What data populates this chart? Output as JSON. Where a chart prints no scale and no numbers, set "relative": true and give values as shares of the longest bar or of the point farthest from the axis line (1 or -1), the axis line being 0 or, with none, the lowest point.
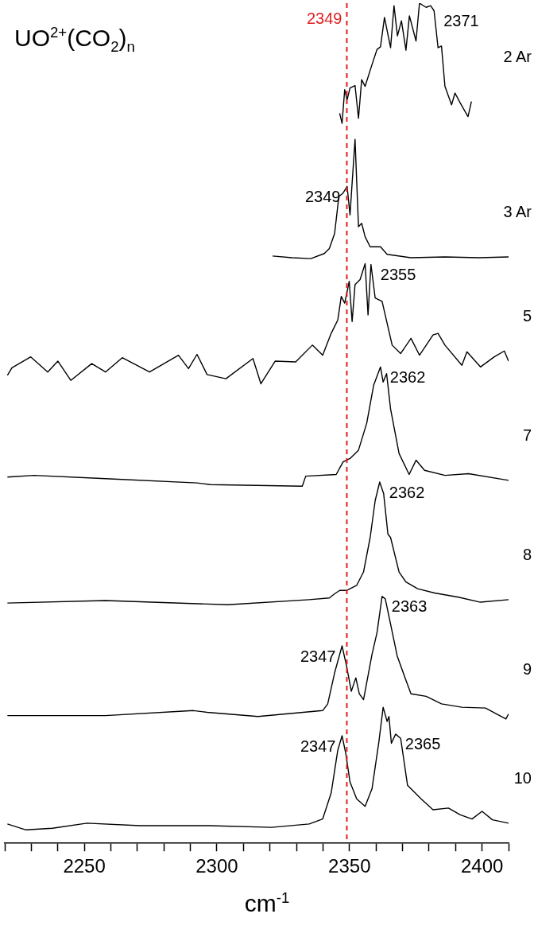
{
  "chart_data": {
    "type": "line",
    "title": "UO$^{2+}$(CO$_{2}$)$_{n}$",
    "xlabel": "cm$^{-1}$",
    "relative": true,
    "marker": "none",
    "line_style": "solid",
    "grid": false,
    "legend": false,
    "xlim": [
      2220,
      2410
    ],
    "xticks": [
      {
        "value": 2220,
        "label": null
      },
      {
        "value": 2230,
        "label": null
      },
      {
        "value": 2240,
        "label": null
      },
      2250,
      {
        "value": 2260,
        "label": null
      },
      {
        "value": 2270,
        "label": null
      },
      {
        "value": 2280,
        "label": null
      },
      {
        "value": 2290,
        "label": null
      },
      2300,
      {
        "value": 2310,
        "label": null
      },
      {
        "value": 2320,
        "label": null
      },
      {
        "value": 2330,
        "label": null
      },
      {
        "value": 2340,
        "label": null
      },
      2350,
      {
        "value": 2360,
        "label": null
      },
      {
        "value": 2370,
        "label": null
      },
      {
        "value": 2380,
        "label": null
      },
      {
        "value": 2390,
        "label": null
      },
      2400,
      {
        "value": 2410,
        "label": null
      }
    ],
    "ref_lines": [
      {
        "axis": "x",
        "value": 2349,
        "label": "2349",
        "color": "#e02020",
        "line_style": "dashed"
      }
    ],
    "annotations": [
      {
        "text": "2371",
        "x": 2381.9,
        "y": 0.991
      },
      {
        "text": "2349",
        "x": 2349,
        "y": 0.782
      },
      {
        "text": "2355",
        "x": 2358.1,
        "y": 0.689
      },
      {
        "text": "2362",
        "x": 2361.7,
        "y": 0.567
      },
      {
        "text": "2362",
        "x": 2361.4,
        "y": 0.43
      },
      {
        "text": "2363",
        "x": 2362.3,
        "y": 0.294
      },
      {
        "text": "2347",
        "x": 2347.2,
        "y": 0.235
      },
      {
        "text": "2347",
        "x": 2347.2,
        "y": 0.128
      },
      {
        "text": "2365",
        "x": 2367.4,
        "y": 0.13
      }
    ],
    "series": [
      {
        "name": "2 Ar",
        "color": "#000000",
        "x": [
          2346.3,
          2347.2,
          2348.2,
          2349.1,
          2350.2,
          2352.1,
          2353.4,
          2354.6,
          2355.9,
          2358.5,
          2360.4,
          2361.7,
          2363.2,
          2365.5,
          2366.8,
          2368.1,
          2369.6,
          2371.3,
          2372.6,
          2375.1,
          2376.4,
          2378.9,
          2380.6,
          2381.9,
          2383.4,
          2384.7,
          2386,
          2388.5,
          2389.8,
          2391.8,
          2394.7,
          2396
        ],
        "values": [
          0.869,
          0.857,
          0.897,
          0.885,
          0.899,
          0.902,
          0.863,
          0.909,
          0.901,
          0.927,
          0.945,
          0.948,
          0.983,
          0.947,
          0.997,
          0.961,
          0.979,
          0.944,
          0.985,
          0.955,
          1,
          0.995,
          0.997,
          0.991,
          0.947,
          0.949,
          0.901,
          0.879,
          0.893,
          0.881,
          0.865,
          0.883
        ]
      },
      {
        "name": "3 Ar",
        "color": "#000000",
        "x": [
          2321,
          2328.4,
          2335.4,
          2340.5,
          2342.4,
          2344.4,
          2346,
          2347.6,
          2349.1,
          2350.2,
          2352.1,
          2353.4,
          2354.6,
          2355.9,
          2357.8,
          2361.7,
          2364.2,
          2373.2,
          2386,
          2398.8,
          2410
        ],
        "values": [
          0.699,
          0.697,
          0.696,
          0.702,
          0.708,
          0.726,
          0.77,
          0.774,
          0.782,
          0.748,
          0.838,
          0.734,
          0.738,
          0.722,
          0.71,
          0.71,
          0.701,
          0.697,
          0.698,
          0.697,
          0.698
        ]
      },
      {
        "name": "5",
        "color": "#000000",
        "x": [
          2221,
          2222.7,
          2229.8,
          2236.2,
          2240,
          2244.9,
          2252.8,
          2258,
          2264.3,
          2274.6,
          2285.5,
          2289.3,
          2292.5,
          2296.3,
          2303.4,
          2313.6,
          2316.6,
          2322,
          2329.7,
          2336,
          2339.9,
          2343.1,
          2345.6,
          2346.9,
          2348.2,
          2349.9,
          2351,
          2352.1,
          2354,
          2355.9,
          2357,
          2358.1,
          2359.7,
          2362.3,
          2364.2,
          2366.1,
          2369.3,
          2373.2,
          2376.4,
          2381.5,
          2383.4,
          2386,
          2392.4,
          2394.3,
          2399.4,
          2404.6,
          2408.4,
          2410
        ],
        "values": [
          0.557,
          0.566,
          0.579,
          0.561,
          0.574,
          0.551,
          0.571,
          0.561,
          0.578,
          0.561,
          0.581,
          0.565,
          0.582,
          0.558,
          0.553,
          0.577,
          0.547,
          0.574,
          0.573,
          0.593,
          0.581,
          0.607,
          0.623,
          0.651,
          0.643,
          0.669,
          0.621,
          0.665,
          0.671,
          0.69,
          0.629,
          0.689,
          0.649,
          0.645,
          0.619,
          0.593,
          0.583,
          0.601,
          0.581,
          0.605,
          0.607,
          0.593,
          0.569,
          0.585,
          0.567,
          0.579,
          0.586,
          0.574
        ]
      },
      {
        "name": "7",
        "color": "#000000",
        "x": [
          2221,
          2231,
          2258,
          2292.5,
          2297.6,
          2332.2,
          2333.5,
          2345,
          2347.6,
          2350.2,
          2353.4,
          2356.5,
          2359.1,
          2361.7,
          2362.7,
          2364,
          2365.5,
          2368.7,
          2372.5,
          2375.1,
          2378.3,
          2386,
          2394.9,
          2410
        ],
        "values": [
          0.436,
          0.438,
          0.434,
          0.429,
          0.427,
          0.425,
          0.437,
          0.439,
          0.454,
          0.458,
          0.468,
          0.5,
          0.545,
          0.567,
          0.549,
          0.559,
          0.517,
          0.464,
          0.439,
          0.456,
          0.444,
          0.438,
          0.44,
          0.432
        ]
      },
      {
        "name": "8",
        "color": "#000000",
        "x": [
          2221,
          2258,
          2304,
          2334.8,
          2342.4,
          2344.4,
          2346.3,
          2348.9,
          2352.7,
          2355.3,
          2357.8,
          2359.7,
          2361.4,
          2362.9,
          2364.5,
          2365.5,
          2368.7,
          2371.3,
          2375.7,
          2382.1,
          2391.1,
          2399.4,
          2410
        ],
        "values": [
          0.286,
          0.289,
          0.284,
          0.29,
          0.292,
          0.297,
          0.301,
          0.301,
          0.307,
          0.323,
          0.364,
          0.408,
          0.43,
          0.416,
          0.368,
          0.364,
          0.323,
          0.311,
          0.303,
          0.298,
          0.293,
          0.287,
          0.29
        ]
      },
      {
        "name": "9",
        "color": "#000000",
        "x": [
          2221,
          2258,
          2291.2,
          2296.3,
          2315.5,
          2339.9,
          2341.8,
          2344.4,
          2347.2,
          2348.9,
          2350.7,
          2352.4,
          2353.7,
          2355.3,
          2358.5,
          2360.4,
          2362.3,
          2363.5,
          2365.5,
          2368,
          2371.3,
          2373.2,
          2378.9,
          2384.7,
          2392.4,
          2401.3,
          2409,
          2410
        ],
        "values": [
          0.152,
          0.152,
          0.158,
          0.156,
          0.151,
          0.158,
          0.166,
          0.203,
          0.235,
          0.211,
          0.181,
          0.197,
          0.178,
          0.171,
          0.225,
          0.251,
          0.294,
          0.291,
          0.261,
          0.223,
          0.194,
          0.178,
          0.175,
          0.166,
          0.162,
          0.161,
          0.148,
          0.154
        ]
      },
      {
        "name": "10",
        "color": "#000000",
        "x": [
          2221,
          2228,
          2238,
          2251,
          2271,
          2297,
          2320.7,
          2334.8,
          2339.9,
          2343.1,
          2345.6,
          2347.2,
          2348.6,
          2350.2,
          2352.7,
          2355.9,
          2358.5,
          2361.1,
          2362.7,
          2364.2,
          2364.9,
          2365.8,
          2367.4,
          2369.3,
          2371.9,
          2377,
          2381.5,
          2387.3,
          2391.8,
          2396.2,
          2400,
          2403.9,
          2410
        ],
        "values": [
          0.023,
          0.016,
          0.018,
          0.024,
          0.021,
          0.021,
          0.019,
          0.023,
          0.029,
          0.06,
          0.111,
          0.128,
          0.107,
          0.073,
          0.053,
          0.044,
          0.065,
          0.121,
          0.162,
          0.145,
          0.151,
          0.119,
          0.13,
          0.125,
          0.069,
          0.053,
          0.04,
          0.042,
          0.034,
          0.029,
          0.038,
          0.028,
          0.024
        ]
      }
    ]
  }
}
